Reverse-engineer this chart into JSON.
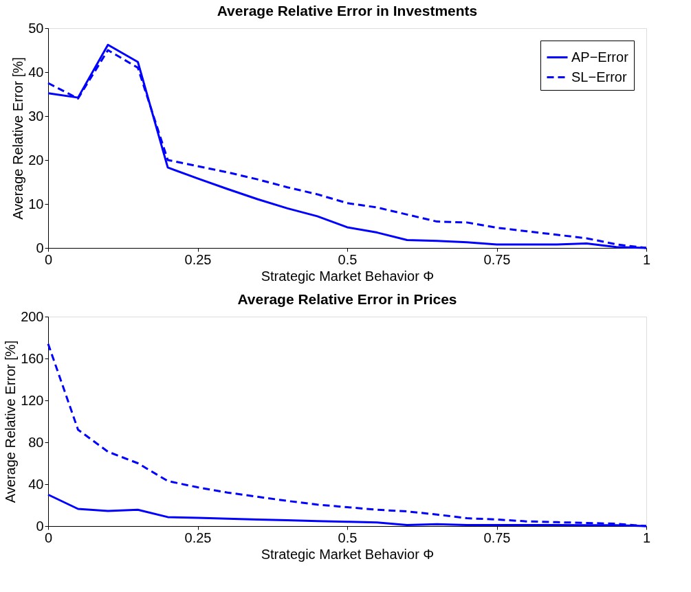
{
  "chart_data": [
    {
      "type": "line",
      "title": "Average Relative Error in Investments",
      "xlabel": "Strategic Market Behavior Φ",
      "ylabel": "Average Relative Error [%]",
      "x": [
        0,
        0.05,
        0.1,
        0.15,
        0.2,
        0.25,
        0.3,
        0.35,
        0.4,
        0.45,
        0.5,
        0.55,
        0.6,
        0.65,
        0.7,
        0.75,
        0.8,
        0.85,
        0.9,
        0.95,
        1
      ],
      "series": [
        {
          "name": "AP−Error",
          "color": "#0000ff",
          "line_style": "solid",
          "values": [
            35.2,
            34.2,
            46.2,
            42.3,
            18.3,
            15.8,
            13.4,
            11.1,
            9.0,
            7.2,
            4.7,
            3.5,
            1.8,
            1.6,
            1.3,
            0.8,
            0.8,
            0.8,
            1.0,
            0.2,
            0
          ]
        },
        {
          "name": "SL−Error",
          "color": "#0000ff",
          "line_style": "dashed",
          "values": [
            37.5,
            34.0,
            45.0,
            41.0,
            20.0,
            18.6,
            17.2,
            15.6,
            13.8,
            12.2,
            10.2,
            9.2,
            7.6,
            6.0,
            5.8,
            4.6,
            3.8,
            3.0,
            2.2,
            0.8,
            0
          ]
        }
      ],
      "xlim": [
        0,
        1
      ],
      "xticks": [
        0,
        0.25,
        0.5,
        0.75,
        1
      ],
      "ylim": [
        0,
        50
      ],
      "yticks": [
        0,
        10,
        20,
        30,
        40,
        50
      ],
      "grid": false,
      "legend": "top right"
    },
    {
      "type": "line",
      "title": "Average Relative Error in Prices",
      "xlabel": "Strategic Market Behavior Φ",
      "ylabel": "Average Relative Error [%]",
      "x": [
        0,
        0.05,
        0.1,
        0.15,
        0.2,
        0.25,
        0.3,
        0.35,
        0.4,
        0.45,
        0.5,
        0.55,
        0.6,
        0.65,
        0.7,
        0.75,
        0.8,
        0.85,
        0.9,
        0.95,
        1
      ],
      "series": [
        {
          "name": "AP−Error",
          "color": "#0000ff",
          "line_style": "solid",
          "values": [
            30,
            16.4,
            14.5,
            15.6,
            8.6,
            7.8,
            7.0,
            6.3,
            5.6,
            4.8,
            4.1,
            3.4,
            1.0,
            1.8,
            1.0,
            1.0,
            1.0,
            1.0,
            0.9,
            0.8,
            0
          ]
        },
        {
          "name": "SL−Error",
          "color": "#0000ff",
          "line_style": "dashed",
          "values": [
            174,
            92,
            71,
            60,
            43,
            37,
            32,
            28,
            24,
            20.5,
            18,
            15.6,
            14,
            11,
            7.5,
            6.3,
            4.5,
            3.7,
            3.0,
            2.2,
            0
          ]
        }
      ],
      "xlim": [
        0,
        1
      ],
      "xticks": [
        0,
        0.25,
        0.5,
        0.75,
        1
      ],
      "ylim": [
        0,
        200
      ],
      "yticks": [
        0,
        40,
        80,
        120,
        160,
        200
      ],
      "grid": false,
      "legend": "top right"
    }
  ]
}
